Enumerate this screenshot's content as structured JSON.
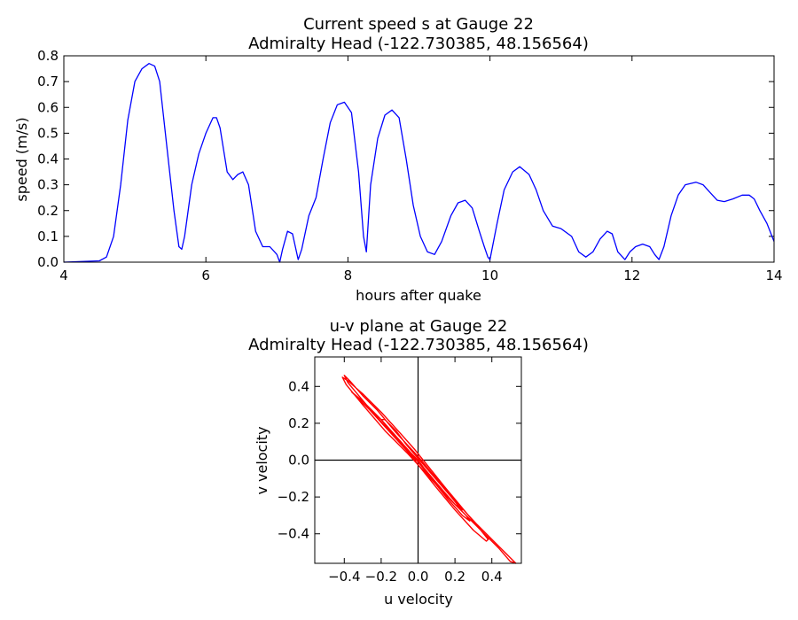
{
  "chart_data": [
    {
      "type": "line",
      "title": "Current speed s at Gauge 22",
      "subtitle": "Admiralty Head  (-122.730385, 48.156564)",
      "xlabel": "hours after quake",
      "ylabel": "speed (m/s)",
      "xlim": [
        4,
        14
      ],
      "ylim": [
        0.0,
        0.8
      ],
      "xticks": [
        "4",
        "6",
        "8",
        "10",
        "12",
        "14"
      ],
      "yticks": [
        "0.0",
        "0.1",
        "0.2",
        "0.3",
        "0.4",
        "0.5",
        "0.6",
        "0.7",
        "0.8"
      ],
      "grid": false,
      "line_color": "#0000ff",
      "series": [
        {
          "x": [
            4.0,
            4.5,
            4.6,
            4.7,
            4.8,
            4.9,
            5.0,
            5.1,
            5.2,
            5.28,
            5.35,
            5.45,
            5.55,
            5.62,
            5.66,
            5.7,
            5.8,
            5.9,
            6.0,
            6.1,
            6.15,
            6.2,
            6.3,
            6.38,
            6.45,
            6.52,
            6.6,
            6.7,
            6.8,
            6.9,
            7.0,
            7.04,
            7.08,
            7.15,
            7.22,
            7.3,
            7.35,
            7.45,
            7.55,
            7.65,
            7.75,
            7.85,
            7.95,
            8.05,
            8.15,
            8.22,
            8.26,
            8.32,
            8.42,
            8.52,
            8.62,
            8.72,
            8.82,
            8.92,
            9.02,
            9.12,
            9.22,
            9.32,
            9.45,
            9.55,
            9.65,
            9.75,
            9.85,
            9.92,
            9.97,
            10.0,
            10.1,
            10.2,
            10.32,
            10.42,
            10.55,
            10.65,
            10.75,
            10.88,
            11.0,
            11.15,
            11.25,
            11.35,
            11.45,
            11.55,
            11.65,
            11.72,
            11.8,
            11.9,
            11.97,
            12.05,
            12.15,
            12.25,
            12.32,
            12.38,
            12.45,
            12.55,
            12.65,
            12.75,
            12.9,
            13.0,
            13.1,
            13.2,
            13.3,
            13.42,
            13.55,
            13.65,
            13.72,
            13.8,
            13.9,
            14.0
          ],
          "y": [
            0.0,
            0.005,
            0.02,
            0.1,
            0.3,
            0.55,
            0.7,
            0.75,
            0.77,
            0.76,
            0.7,
            0.45,
            0.2,
            0.06,
            0.05,
            0.1,
            0.3,
            0.42,
            0.5,
            0.56,
            0.56,
            0.52,
            0.35,
            0.32,
            0.34,
            0.35,
            0.3,
            0.12,
            0.06,
            0.06,
            0.03,
            0.0,
            0.05,
            0.12,
            0.11,
            0.01,
            0.05,
            0.18,
            0.25,
            0.4,
            0.54,
            0.61,
            0.62,
            0.58,
            0.35,
            0.1,
            0.04,
            0.3,
            0.48,
            0.57,
            0.59,
            0.56,
            0.4,
            0.22,
            0.1,
            0.04,
            0.03,
            0.08,
            0.18,
            0.23,
            0.24,
            0.21,
            0.12,
            0.06,
            0.02,
            0.01,
            0.15,
            0.28,
            0.35,
            0.37,
            0.34,
            0.28,
            0.2,
            0.14,
            0.13,
            0.1,
            0.04,
            0.02,
            0.04,
            0.09,
            0.12,
            0.11,
            0.04,
            0.01,
            0.04,
            0.06,
            0.07,
            0.06,
            0.03,
            0.01,
            0.06,
            0.18,
            0.26,
            0.3,
            0.31,
            0.3,
            0.27,
            0.24,
            0.235,
            0.245,
            0.26,
            0.26,
            0.245,
            0.2,
            0.15,
            0.08
          ]
        }
      ]
    },
    {
      "type": "scatter",
      "title": "u-v plane at Gauge 22",
      "subtitle": "Admiralty Head  (-122.730385, 48.156564)",
      "xlabel": "u velocity",
      "ylabel": "v velocity",
      "xlim": [
        -0.56,
        0.56
      ],
      "ylim": [
        -0.56,
        0.56
      ],
      "xticks": [
        "−0.4",
        "−0.2",
        "0.0",
        "0.2",
        "0.4"
      ],
      "yticks": [
        "−0.4",
        "−0.2",
        "0.0",
        "0.2",
        "0.4"
      ],
      "xtick_values": [
        -0.4,
        -0.2,
        0.0,
        0.2,
        0.4
      ],
      "ytick_values": [
        -0.4,
        -0.2,
        0.0,
        0.2,
        0.4
      ],
      "grid": false,
      "line_color": "#ff0000",
      "series": [
        {
          "u": [
            0.0,
            -0.05,
            -0.15,
            -0.28,
            -0.38,
            -0.4,
            -0.37,
            -0.3,
            -0.22,
            -0.12,
            0.0,
            0.1,
            0.2,
            0.32,
            0.42,
            0.5,
            0.53,
            0.5,
            0.44,
            0.36,
            0.26,
            0.16,
            0.05,
            -0.06,
            -0.18,
            -0.3,
            -0.39,
            -0.41,
            -0.38,
            -0.3,
            -0.2,
            -0.1,
            -0.02,
            0.06,
            0.14,
            0.24,
            0.34,
            0.38,
            0.37,
            0.3,
            0.2,
            0.1,
            0.02,
            -0.06,
            -0.16,
            -0.26,
            -0.34,
            -0.36,
            -0.3,
            -0.2,
            -0.12,
            -0.04,
            0.04,
            0.12,
            0.2,
            0.26,
            0.28,
            0.24,
            0.16,
            0.08,
            0.02,
            -0.04,
            -0.1,
            -0.16,
            -0.2,
            -0.18,
            -0.12,
            -0.06,
            0.0,
            0.06,
            0.12,
            0.18,
            0.22,
            0.24,
            0.2,
            0.14,
            0.08,
            0.03,
            0.0
          ],
          "v": [
            0.0,
            0.05,
            0.15,
            0.3,
            0.42,
            0.46,
            0.43,
            0.35,
            0.27,
            0.15,
            0.02,
            -0.1,
            -0.22,
            -0.35,
            -0.45,
            -0.53,
            -0.57,
            -0.55,
            -0.48,
            -0.4,
            -0.3,
            -0.2,
            -0.08,
            0.04,
            0.16,
            0.3,
            0.41,
            0.45,
            0.43,
            0.36,
            0.26,
            0.15,
            0.06,
            -0.04,
            -0.14,
            -0.26,
            -0.38,
            -0.43,
            -0.44,
            -0.38,
            -0.27,
            -0.15,
            -0.05,
            0.05,
            0.16,
            0.27,
            0.35,
            0.37,
            0.32,
            0.22,
            0.13,
            0.04,
            -0.06,
            -0.15,
            -0.24,
            -0.3,
            -0.33,
            -0.3,
            -0.21,
            -0.11,
            -0.03,
            0.03,
            0.1,
            0.17,
            0.22,
            0.22,
            0.16,
            0.08,
            0.01,
            -0.06,
            -0.13,
            -0.2,
            -0.25,
            -0.27,
            -0.24,
            -0.17,
            -0.1,
            -0.04,
            0.0
          ]
        }
      ]
    }
  ]
}
